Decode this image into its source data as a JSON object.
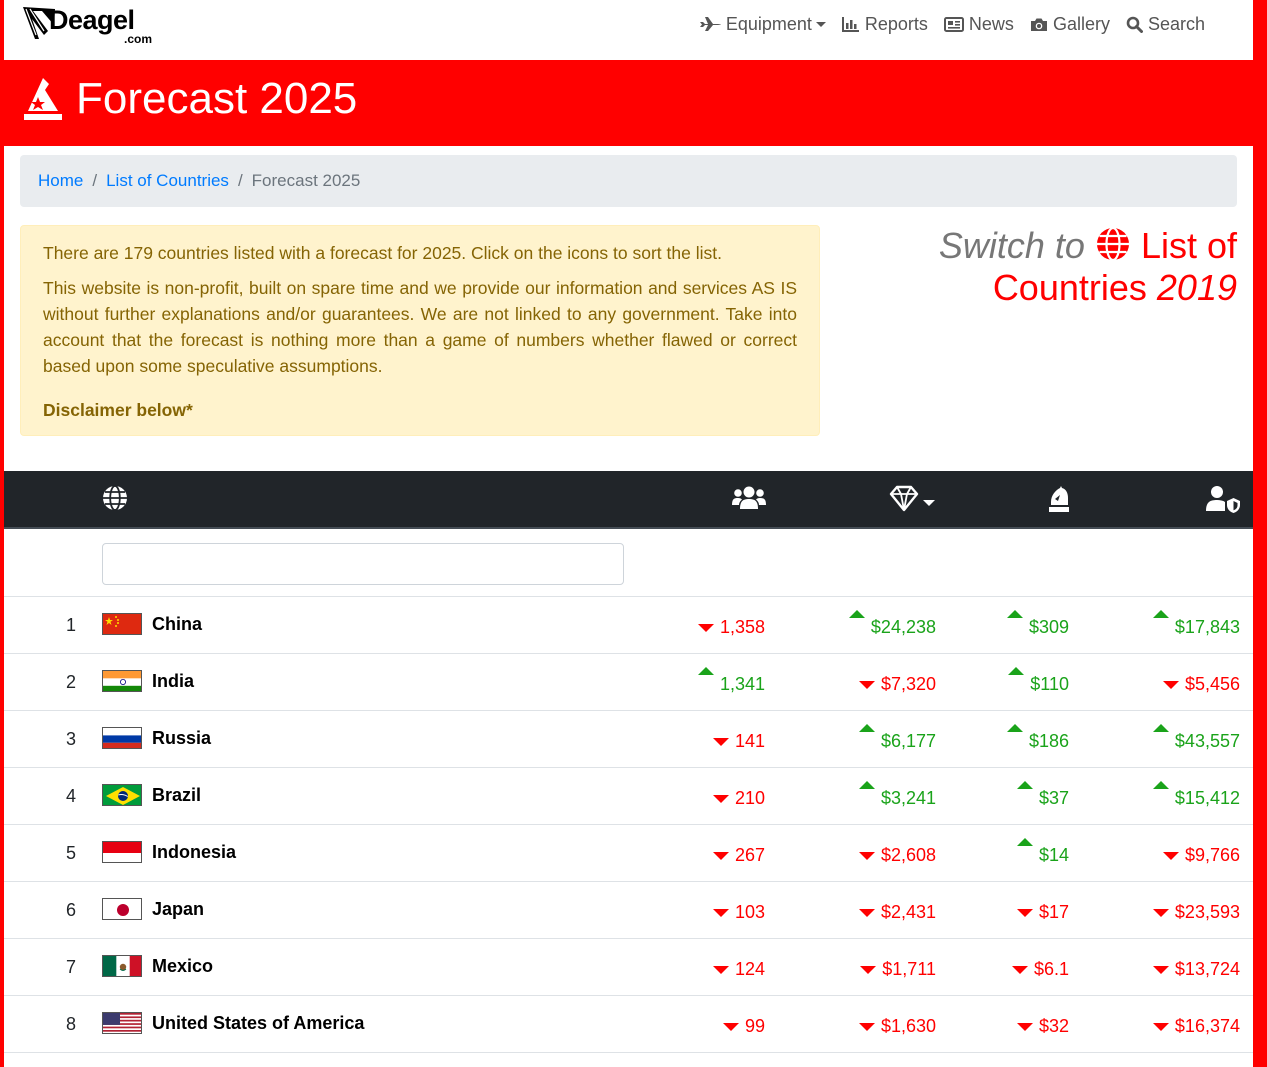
{
  "logo": {
    "name": "Deagel",
    "suffix": ".com"
  },
  "nav": [
    {
      "label": "Equipment",
      "icon": "plane-icon",
      "dropdown": true
    },
    {
      "label": "Reports",
      "icon": "bar-chart-icon"
    },
    {
      "label": "News",
      "icon": "newspaper-icon"
    },
    {
      "label": "Gallery",
      "icon": "camera-icon"
    },
    {
      "label": "Search",
      "icon": "search-icon"
    }
  ],
  "hero": {
    "title": "Forecast 2025",
    "icon": "wizard-hat-icon"
  },
  "breadcrumb": {
    "home": "Home",
    "list": "List of Countries",
    "current": "Forecast 2025"
  },
  "alert": {
    "line1": "There are 179 countries listed with a forecast for 2025. Click on the icons to sort the list.",
    "line2": "This website is non-profit, built on spare time and we provide our information and services AS IS without further explanations and/or guarantees. We are not linked to any government. Take into account that the forecast is nothing more than a game of numbers whether flawed or correct based upon some speculative assumptions.",
    "disclaimer": "Disclaimer below*"
  },
  "switch": {
    "label": "Switch to",
    "link": "List of Countries",
    "year": "2019"
  },
  "table": {
    "header_icons": [
      "globe-icon",
      "users-icon",
      "gem-icon",
      "chess-knight-icon",
      "user-shield-icon"
    ],
    "sorted_column": "gem-icon",
    "filter_value": "",
    "rows": [
      {
        "rank": "1",
        "country": "China",
        "flag": "china",
        "pop": "1,358",
        "pop_dir": "down",
        "gdp": "$24,238",
        "gdp_dir": "up",
        "mil": "$309",
        "mil_dir": "up",
        "ppp": "$17,843",
        "ppp_dir": "up"
      },
      {
        "rank": "2",
        "country": "India",
        "flag": "india",
        "pop": "1,341",
        "pop_dir": "up",
        "gdp": "$7,320",
        "gdp_dir": "down",
        "mil": "$110",
        "mil_dir": "up",
        "ppp": "$5,456",
        "ppp_dir": "down"
      },
      {
        "rank": "3",
        "country": "Russia",
        "flag": "russia",
        "pop": "141",
        "pop_dir": "down",
        "gdp": "$6,177",
        "gdp_dir": "up",
        "mil": "$186",
        "mil_dir": "up",
        "ppp": "$43,557",
        "ppp_dir": "up"
      },
      {
        "rank": "4",
        "country": "Brazil",
        "flag": "brazil",
        "pop": "210",
        "pop_dir": "down",
        "gdp": "$3,241",
        "gdp_dir": "up",
        "mil": "$37",
        "mil_dir": "up",
        "ppp": "$15,412",
        "ppp_dir": "up"
      },
      {
        "rank": "5",
        "country": "Indonesia",
        "flag": "indonesia",
        "pop": "267",
        "pop_dir": "down",
        "gdp": "$2,608",
        "gdp_dir": "down",
        "mil": "$14",
        "mil_dir": "up",
        "ppp": "$9,766",
        "ppp_dir": "down"
      },
      {
        "rank": "6",
        "country": "Japan",
        "flag": "japan",
        "pop": "103",
        "pop_dir": "down",
        "gdp": "$2,431",
        "gdp_dir": "down",
        "mil": "$17",
        "mil_dir": "down",
        "ppp": "$23,593",
        "ppp_dir": "down"
      },
      {
        "rank": "7",
        "country": "Mexico",
        "flag": "mexico",
        "pop": "124",
        "pop_dir": "down",
        "gdp": "$1,711",
        "gdp_dir": "down",
        "mil": "$6.1",
        "mil_dir": "down",
        "ppp": "$13,724",
        "ppp_dir": "down"
      },
      {
        "rank": "8",
        "country": "United States of America",
        "flag": "usa",
        "pop": "99",
        "pop_dir": "down",
        "gdp": "$1,630",
        "gdp_dir": "down",
        "mil": "$32",
        "mil_dir": "down",
        "ppp": "$16,374",
        "ppp_dir": "down"
      }
    ]
  },
  "colors": {
    "brand_red": "#ff0000",
    "up_green": "#1aa31a",
    "alert_bg": "#fff3cd",
    "header_dark": "#212529"
  }
}
